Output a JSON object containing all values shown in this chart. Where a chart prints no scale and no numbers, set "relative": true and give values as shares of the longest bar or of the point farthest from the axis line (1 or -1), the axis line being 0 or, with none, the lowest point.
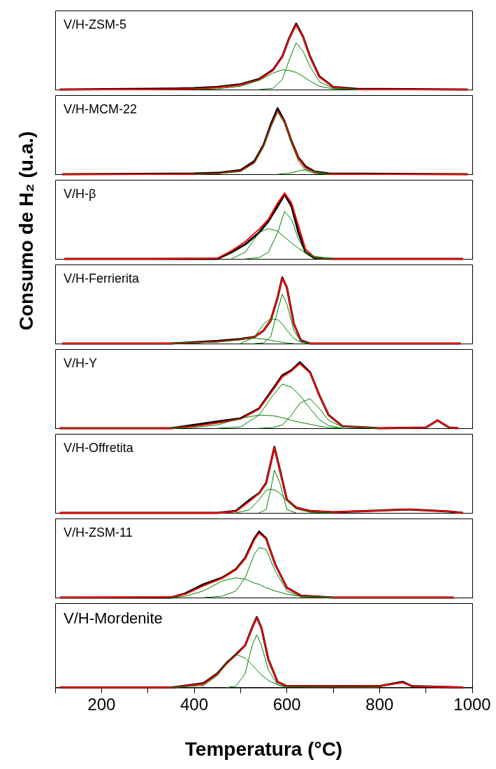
{
  "chart_data": [
    {
      "type": "line",
      "title": "V/H-ZSM-5",
      "relative": true,
      "legend": false,
      "grid": false,
      "tick_labels": false,
      "marker": "none",
      "xlim": [
        100,
        1000
      ],
      "x": [
        110,
        300,
        400,
        450,
        500,
        540,
        570,
        590,
        605,
        620,
        635,
        650,
        670,
        700,
        750,
        990
      ],
      "series": [
        {
          "color": "#000000",
          "values": [
            0,
            0.01,
            0.02,
            0.04,
            0.08,
            0.16,
            0.3,
            0.5,
            0.78,
            1,
            0.8,
            0.5,
            0.2,
            0.04,
            0.01,
            0
          ]
        },
        {
          "color": "#ff0000",
          "values": [
            0,
            0,
            0.01,
            0.03,
            0.07,
            0.15,
            0.29,
            0.49,
            0.77,
            0.98,
            0.79,
            0.49,
            0.19,
            0.04,
            0,
            0
          ]
        },
        {
          "color": "#008000",
          "values": [
            null,
            null,
            0,
            0.01,
            0.05,
            0.14,
            0.25,
            0.3,
            0.29,
            0.26,
            0.2,
            0.13,
            0.05,
            0.01,
            0,
            null
          ]
        },
        {
          "color": "#008000",
          "values": [
            null,
            null,
            null,
            null,
            null,
            0,
            0.02,
            0.15,
            0.45,
            0.71,
            0.58,
            0.35,
            0.12,
            0.02,
            0,
            null
          ]
        }
      ]
    },
    {
      "type": "line",
      "title": "V/H-MCM-22",
      "relative": true,
      "legend": false,
      "grid": false,
      "tick_labels": false,
      "marker": "none",
      "xlim": [
        100,
        1000
      ],
      "x": [
        115,
        400,
        450,
        500,
        530,
        550,
        565,
        580,
        595,
        610,
        625,
        640,
        660,
        690,
        990
      ],
      "series": [
        {
          "color": "#000000",
          "values": [
            0,
            0.01,
            0.02,
            0.06,
            0.2,
            0.45,
            0.75,
            1,
            0.8,
            0.5,
            0.25,
            0.12,
            0.04,
            0.01,
            0
          ]
        },
        {
          "color": "#ff0000",
          "values": [
            0,
            0,
            0.01,
            0.05,
            0.18,
            0.43,
            0.72,
            0.96,
            0.79,
            0.49,
            0.24,
            0.1,
            0.03,
            0,
            0
          ]
        },
        {
          "color": "#008000",
          "values": [
            null,
            0,
            0.01,
            0.04,
            0.17,
            0.42,
            0.71,
            0.95,
            0.77,
            0.46,
            0.2,
            0.06,
            0.01,
            0,
            null
          ]
        },
        {
          "color": "#008000",
          "values": [
            null,
            null,
            null,
            null,
            null,
            null,
            null,
            0,
            0.01,
            0.02,
            0.05,
            0.07,
            0.04,
            0,
            null
          ]
        }
      ]
    },
    {
      "type": "line",
      "title": "V/H-β",
      "ylabel": "Consumo de H₂ (u.a.)",
      "relative": true,
      "legend": false,
      "grid": false,
      "tick_labels": false,
      "marker": "none",
      "xlim": [
        100,
        1000
      ],
      "x": [
        120,
        300,
        450,
        480,
        510,
        540,
        560,
        580,
        595,
        610,
        625,
        640,
        660,
        700,
        980
      ],
      "series": [
        {
          "color": "#000000",
          "values": [
            0,
            0,
            0,
            0.1,
            0.22,
            0.4,
            0.57,
            0.8,
            0.98,
            0.8,
            0.4,
            0.1,
            0.01,
            0,
            0
          ]
        },
        {
          "color": "#ff0000",
          "values": [
            0,
            0,
            0.01,
            0.12,
            0.26,
            0.45,
            0.6,
            0.85,
            1,
            0.85,
            0.5,
            0.15,
            0.02,
            0,
            0
          ]
        },
        {
          "color": "#008000",
          "values": [
            null,
            null,
            null,
            0,
            0.1,
            0.4,
            0.46,
            0.42,
            0.33,
            0.24,
            0.16,
            0.09,
            0.04,
            0,
            null
          ]
        },
        {
          "color": "#008000",
          "values": [
            null,
            null,
            null,
            null,
            0,
            0.02,
            0.1,
            0.4,
            0.72,
            0.6,
            0.3,
            0.1,
            0.02,
            0,
            null
          ]
        }
      ]
    },
    {
      "type": "line",
      "title": "V/H-Ferrierita",
      "relative": true,
      "legend": false,
      "grid": false,
      "tick_labels": false,
      "marker": "none",
      "xlim": [
        100,
        1000
      ],
      "x": [
        115,
        350,
        450,
        500,
        530,
        550,
        565,
        580,
        590,
        600,
        615,
        630,
        650,
        975
      ],
      "series": [
        {
          "color": "#000000",
          "values": [
            0,
            0,
            0.04,
            0.07,
            0.1,
            0.2,
            0.35,
            0.7,
            1,
            0.85,
            0.3,
            0.05,
            0,
            0
          ]
        },
        {
          "color": "#ff0000",
          "values": [
            0,
            0,
            0.03,
            0.06,
            0.1,
            0.2,
            0.35,
            0.7,
            0.99,
            0.85,
            0.3,
            0.04,
            0,
            0
          ]
        },
        {
          "color": "#008000",
          "values": [
            null,
            0,
            0.02,
            0.06,
            0.08,
            0.07,
            0.05,
            0.03,
            0.02,
            0.01,
            0,
            null,
            null,
            null
          ]
        },
        {
          "color": "#008000",
          "values": [
            null,
            null,
            null,
            0,
            0.1,
            0.3,
            0.38,
            0.36,
            0.3,
            0.2,
            0.08,
            0.02,
            0,
            null
          ]
        },
        {
          "color": "#008000",
          "values": [
            null,
            null,
            null,
            null,
            0,
            0.01,
            0.1,
            0.5,
            0.75,
            0.6,
            0.2,
            0.03,
            0,
            null
          ]
        }
      ]
    },
    {
      "type": "line",
      "title": "V/H-Y",
      "relative": true,
      "legend": false,
      "grid": false,
      "tick_labels": false,
      "marker": "none",
      "xlim": [
        100,
        1000
      ],
      "x": [
        110,
        350,
        400,
        450,
        500,
        540,
        570,
        590,
        610,
        628,
        650,
        670,
        690,
        720,
        800,
        900,
        925,
        950,
        970
      ],
      "series": [
        {
          "color": "#000000",
          "values": [
            0,
            0,
            0.05,
            0.1,
            0.15,
            0.3,
            0.6,
            0.8,
            0.88,
            1,
            0.85,
            0.5,
            0.2,
            0.03,
            0,
            0.01,
            0.12,
            0.01,
            0
          ]
        },
        {
          "color": "#ff0000",
          "values": [
            0,
            0,
            0.03,
            0.08,
            0.14,
            0.29,
            0.58,
            0.78,
            0.87,
            0.98,
            0.84,
            0.5,
            0.2,
            0.03,
            0,
            0.01,
            0.12,
            0.01,
            0
          ]
        },
        {
          "color": "#008000",
          "values": [
            null,
            0,
            0.01,
            0.05,
            0.15,
            0.2,
            0.19,
            0.16,
            0.12,
            0.09,
            0.06,
            0.03,
            0.01,
            0,
            null,
            null,
            null,
            null,
            null
          ]
        },
        {
          "color": "#008000",
          "values": [
            null,
            null,
            null,
            0,
            0.02,
            0.2,
            0.5,
            0.67,
            0.62,
            0.5,
            0.3,
            0.13,
            0.04,
            0,
            null,
            null,
            null,
            null,
            null
          ]
        },
        {
          "color": "#008000",
          "values": [
            null,
            null,
            null,
            null,
            null,
            0,
            0.01,
            0.05,
            0.2,
            0.38,
            0.45,
            0.3,
            0.12,
            0.02,
            0,
            null,
            null,
            null,
            null
          ]
        }
      ]
    },
    {
      "type": "line",
      "title": "V/H-Offretita",
      "relative": true,
      "legend": false,
      "grid": false,
      "tick_labels": false,
      "marker": "none",
      "xlim": [
        100,
        1000
      ],
      "x": [
        110,
        450,
        490,
        520,
        540,
        555,
        565,
        573,
        585,
        600,
        620,
        650,
        700,
        850,
        870,
        950,
        980
      ],
      "series": [
        {
          "color": "#000000",
          "values": [
            0,
            0,
            0.03,
            0.2,
            0.3,
            0.45,
            0.75,
            1,
            0.65,
            0.2,
            0.08,
            0.03,
            0.01,
            0.05,
            0.05,
            0.02,
            0
          ]
        },
        {
          "color": "#ff0000",
          "values": [
            0,
            0,
            0.02,
            0.18,
            0.3,
            0.44,
            0.74,
            0.99,
            0.64,
            0.2,
            0.08,
            0.03,
            0.01,
            0.05,
            0.05,
            0.02,
            0
          ]
        },
        {
          "color": "#008000",
          "values": [
            null,
            null,
            0,
            0.05,
            0.2,
            0.34,
            0.36,
            0.35,
            0.3,
            0.18,
            0.06,
            0.01,
            0,
            null,
            null,
            null,
            null
          ]
        },
        {
          "color": "#008000",
          "values": [
            null,
            null,
            null,
            null,
            0,
            0.05,
            0.35,
            0.65,
            0.45,
            0.05,
            0,
            null,
            null,
            null,
            null,
            null,
            null
          ]
        }
      ]
    },
    {
      "type": "line",
      "title": "V/H-ZSM-11",
      "relative": true,
      "legend": false,
      "grid": false,
      "tick_labels": false,
      "marker": "none",
      "xlim": [
        100,
        1000
      ],
      "x": [
        110,
        350,
        380,
        420,
        460,
        490,
        510,
        530,
        540,
        555,
        575,
        600,
        630,
        700,
        960
      ],
      "series": [
        {
          "color": "#000000",
          "values": [
            0,
            0,
            0.06,
            0.2,
            0.3,
            0.43,
            0.6,
            0.9,
            1,
            0.9,
            0.5,
            0.15,
            0.03,
            0,
            0
          ]
        },
        {
          "color": "#ff0000",
          "values": [
            0,
            0.01,
            0.05,
            0.18,
            0.29,
            0.42,
            0.59,
            0.88,
            0.98,
            0.89,
            0.5,
            0.15,
            0.03,
            0,
            0
          ]
        },
        {
          "color": "#008000",
          "values": [
            null,
            0,
            0.02,
            0.1,
            0.25,
            0.3,
            0.28,
            0.22,
            0.2,
            0.15,
            0.1,
            0.05,
            0.02,
            0,
            null
          ]
        },
        {
          "color": "#008000",
          "values": [
            null,
            null,
            null,
            0,
            0.02,
            0.1,
            0.3,
            0.66,
            0.76,
            0.73,
            0.4,
            0.1,
            0.01,
            0,
            null
          ]
        }
      ]
    },
    {
      "type": "line",
      "title": "V/H-Mordenite",
      "xlabel": "Temperatura (°C)",
      "relative": true,
      "legend": false,
      "grid": false,
      "tick_labels": "x",
      "marker": "none",
      "xlim": [
        100,
        1000
      ],
      "xticks": [
        {
          "value": 100,
          "label": null
        },
        200,
        {
          "value": 300,
          "label": null
        },
        400,
        {
          "value": 500,
          "label": null
        },
        600,
        {
          "value": 700,
          "label": null
        },
        800,
        {
          "value": 900,
          "label": null
        },
        1000
      ],
      "x": [
        110,
        350,
        420,
        450,
        470,
        490,
        510,
        525,
        535,
        545,
        560,
        580,
        600,
        800,
        850,
        870,
        980
      ],
      "series": [
        {
          "color": "#000000",
          "values": [
            0,
            0,
            0.06,
            0.2,
            0.35,
            0.47,
            0.6,
            0.85,
            1,
            0.85,
            0.4,
            0.08,
            0.02,
            0.02,
            0.08,
            0.02,
            0
          ]
        },
        {
          "color": "#ff0000",
          "values": [
            0,
            0,
            0.05,
            0.19,
            0.34,
            0.46,
            0.6,
            0.84,
            0.99,
            0.85,
            0.4,
            0.08,
            0.02,
            0.02,
            0.07,
            0.02,
            0
          ]
        },
        {
          "color": "#008000",
          "values": [
            null,
            0,
            0.03,
            0.17,
            0.35,
            0.47,
            0.42,
            0.32,
            0.25,
            0.18,
            0.1,
            0.04,
            0.01,
            0,
            null,
            null,
            null
          ]
        },
        {
          "color": "#008000",
          "values": [
            null,
            null,
            null,
            null,
            0,
            0.02,
            0.2,
            0.6,
            0.75,
            0.6,
            0.25,
            0.04,
            0,
            null,
            null,
            null,
            null
          ]
        }
      ]
    }
  ]
}
